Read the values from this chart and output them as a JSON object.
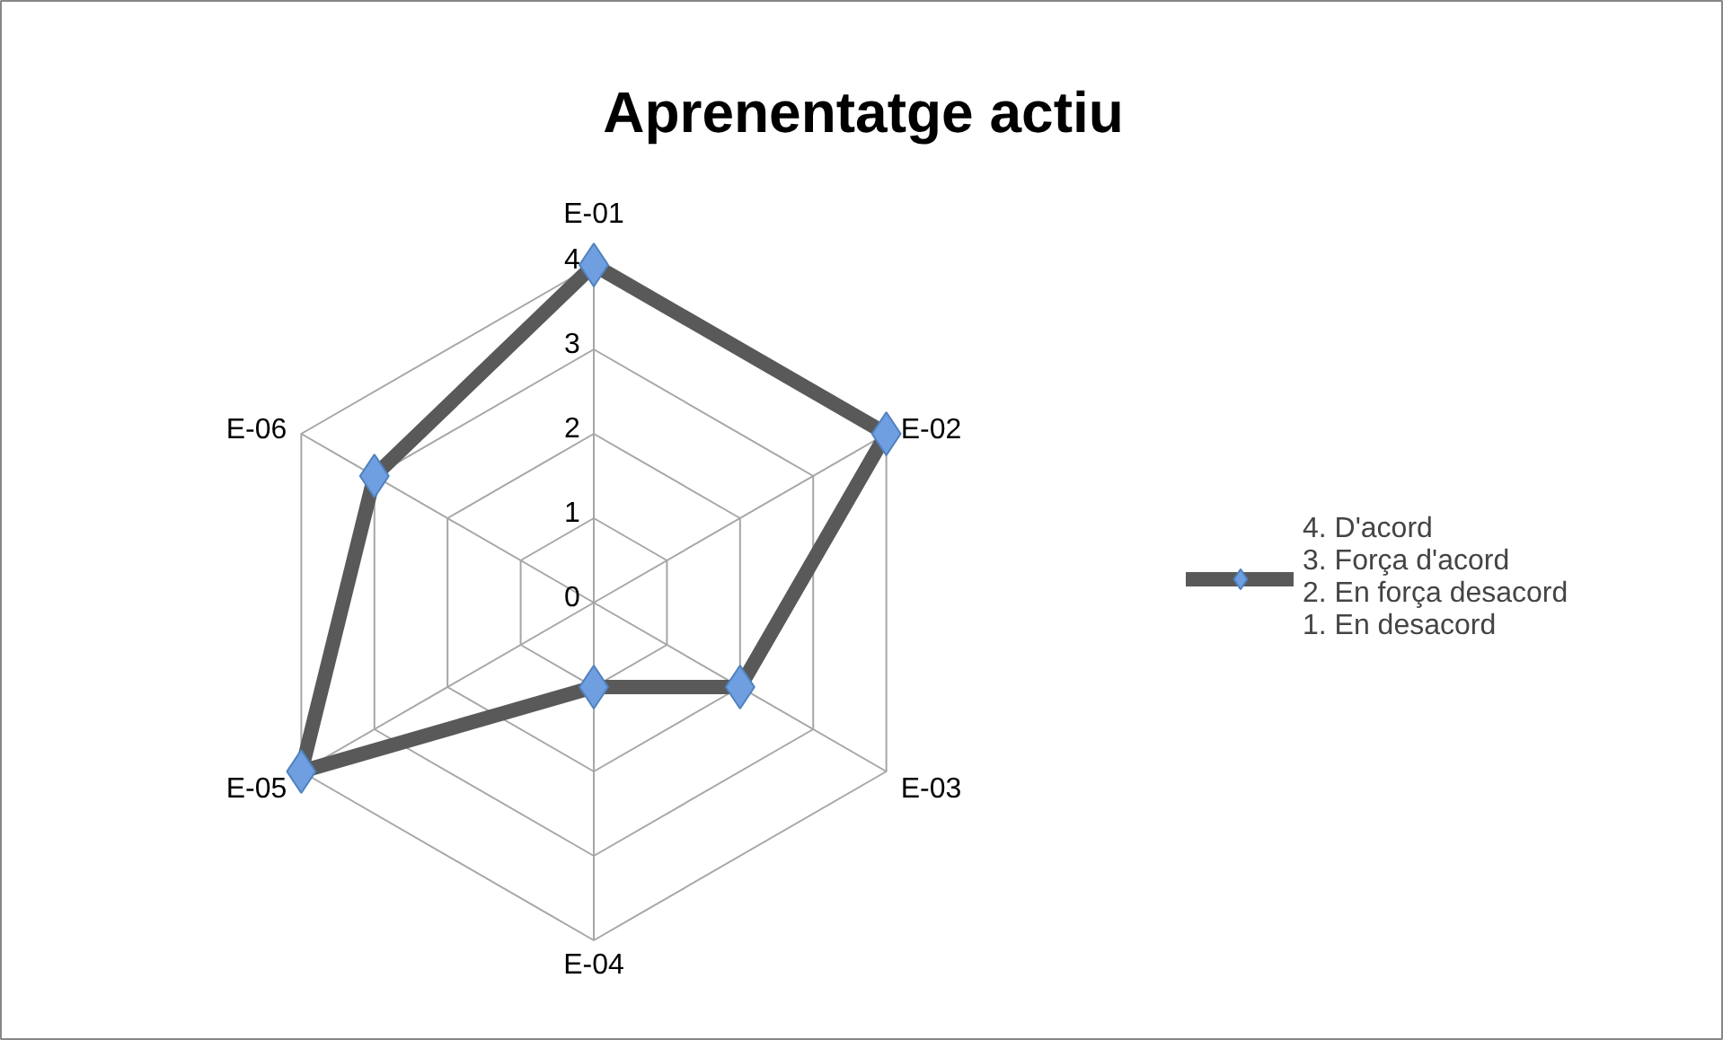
{
  "chart_data": {
    "type": "radar",
    "title": "Aprenentatge actiu",
    "categories": [
      "E-01",
      "E-02",
      "E-03",
      "E-04",
      "E-05",
      "E-06"
    ],
    "series": [
      {
        "name": "4. D'acord\n3. Força d'acord\n2. En força desacord\n1. En desacord",
        "color": "#595959",
        "values": [
          4,
          4,
          2,
          1,
          4,
          3
        ]
      }
    ],
    "ylim": [
      0,
      4
    ],
    "yticks": [
      0,
      1,
      2,
      3,
      4
    ],
    "grid": true,
    "marker": "diamond",
    "line_style": "solid",
    "legend": "right"
  }
}
